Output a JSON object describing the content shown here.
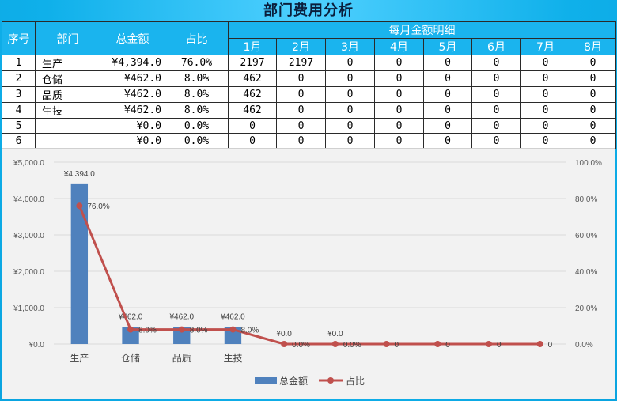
{
  "title": "部门费用分析",
  "table": {
    "headers": {
      "index": "序号",
      "dept": "部门",
      "total": "总金额",
      "ratio": "占比",
      "monthly_group": "每月金额明细",
      "months": [
        "1月",
        "2月",
        "3月",
        "4月",
        "5月",
        "6月",
        "7月",
        "8月"
      ]
    },
    "rows": [
      {
        "index": "1",
        "dept": "生产",
        "total": "¥4,394.0",
        "ratio": "76.0%",
        "months": [
          "2197",
          "2197",
          "0",
          "0",
          "0",
          "0",
          "0",
          "0"
        ]
      },
      {
        "index": "2",
        "dept": "仓储",
        "total": "¥462.0",
        "ratio": "8.0%",
        "months": [
          "462",
          "0",
          "0",
          "0",
          "0",
          "0",
          "0",
          "0"
        ]
      },
      {
        "index": "3",
        "dept": "品质",
        "total": "¥462.0",
        "ratio": "8.0%",
        "months": [
          "462",
          "0",
          "0",
          "0",
          "0",
          "0",
          "0",
          "0"
        ]
      },
      {
        "index": "4",
        "dept": "生技",
        "total": "¥462.0",
        "ratio": "8.0%",
        "months": [
          "462",
          "0",
          "0",
          "0",
          "0",
          "0",
          "0",
          "0"
        ]
      },
      {
        "index": "5",
        "dept": "",
        "total": "¥0.0",
        "ratio": "0.0%",
        "months": [
          "0",
          "0",
          "0",
          "0",
          "0",
          "0",
          "0",
          "0"
        ]
      },
      {
        "index": "6",
        "dept": "",
        "total": "¥0.0",
        "ratio": "0.0%",
        "months": [
          "0",
          "0",
          "0",
          "0",
          "0",
          "0",
          "0",
          "0"
        ]
      }
    ]
  },
  "chart_data": {
    "type": "bar",
    "categories": [
      "生产",
      "仓储",
      "品质",
      "生技",
      "",
      "",
      "",
      "",
      "",
      ""
    ],
    "series": [
      {
        "name": "总金额",
        "kind": "bar",
        "axis": "left",
        "values": [
          4394,
          462,
          462,
          462,
          0,
          0,
          null,
          null,
          null,
          null
        ],
        "labels": [
          "¥4,394.0",
          "¥462.0",
          "¥462.0",
          "¥462.0",
          "¥0.0",
          "¥0.0",
          "",
          "",
          "",
          ""
        ]
      },
      {
        "name": "占比",
        "kind": "line",
        "axis": "right",
        "values": [
          0.76,
          0.08,
          0.08,
          0.08,
          0,
          0,
          0,
          0,
          0,
          0
        ],
        "labels": [
          "76.0%",
          "8.0%",
          "8.0%",
          "8.0%",
          "0.0%",
          "0.0%",
          "0",
          "0",
          "0",
          "0"
        ]
      }
    ],
    "y_left": {
      "min": 0,
      "max": 5000,
      "ticks": [
        "¥0.0",
        "¥1,000.0",
        "¥2,000.0",
        "¥3,000.0",
        "¥4,000.0",
        "¥5,000.0"
      ]
    },
    "y_right": {
      "min": 0,
      "max": 1,
      "ticks": [
        "0.0%",
        "20.0%",
        "40.0%",
        "60.0%",
        "80.0%",
        "100.0%"
      ]
    },
    "grid": true,
    "legend": "bottom",
    "colors": {
      "bar": "#4f81bd",
      "line": "#c0504d"
    }
  }
}
